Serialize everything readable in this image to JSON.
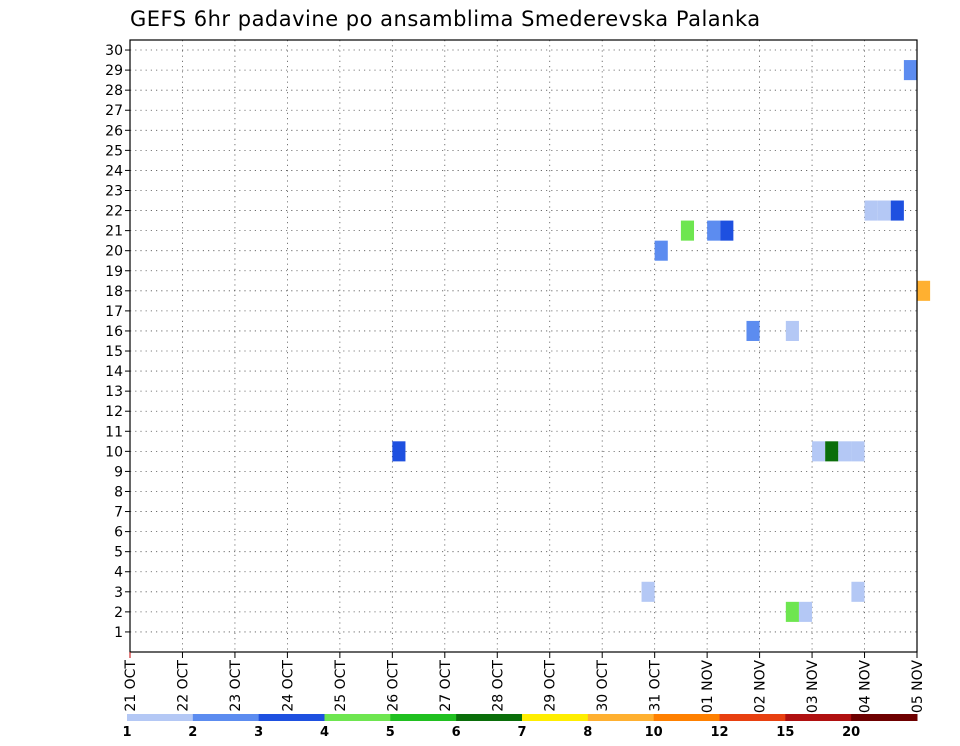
{
  "chart_data": {
    "type": "heatmap",
    "title": "GEFS 6hr padavine po ansamblima Smederevska Palanka",
    "xlabel": "",
    "ylabel": "",
    "x_ticks": [
      "21 OCT",
      "22 OCT",
      "23 OCT",
      "24 OCT",
      "25 OCT",
      "26 OCT",
      "27 OCT",
      "28 OCT",
      "29 OCT",
      "30 OCT",
      "31 OCT",
      "01 NOV",
      "02 NOV",
      "03 NOV",
      "04 NOV",
      "05 NOV"
    ],
    "y_ticks": [
      1,
      2,
      3,
      4,
      5,
      6,
      7,
      8,
      9,
      10,
      11,
      12,
      13,
      14,
      15,
      16,
      17,
      18,
      19,
      20,
      21,
      22,
      23,
      24,
      25,
      26,
      27,
      28,
      29,
      30
    ],
    "xlim": [
      "21 OCT",
      "05 NOV"
    ],
    "ylim": [
      0,
      30
    ],
    "grid": true,
    "legend": {
      "placement": "bottom",
      "labels": [
        "1",
        "2",
        "3",
        "4",
        "5",
        "6",
        "7",
        "8",
        "10",
        "12",
        "15",
        "20"
      ],
      "colors": [
        "#b4c8f5",
        "#5c8cf0",
        "#1e50e0",
        "#6ee650",
        "#20c020",
        "#0a6e0a",
        "#ffee00",
        "#ffb030",
        "#ff8000",
        "#e84010",
        "#b01010",
        "#6e0000"
      ]
    },
    "cells": [
      {
        "member": 29,
        "date": "04 NOV 18Z",
        "value": 2
      },
      {
        "member": 22,
        "date": "04 NOV 00Z",
        "value": 1
      },
      {
        "member": 22,
        "date": "04 NOV 06Z",
        "value": 1
      },
      {
        "member": 22,
        "date": "04 NOV 12Z",
        "value": 3
      },
      {
        "member": 21,
        "date": "31 OCT 12Z",
        "value": 4
      },
      {
        "member": 21,
        "date": "01 NOV 00Z",
        "value": 2
      },
      {
        "member": 21,
        "date": "01 NOV 06Z",
        "value": 3
      },
      {
        "member": 20,
        "date": "31 OCT 00Z",
        "value": 2
      },
      {
        "member": 18,
        "date": "05 NOV 00Z",
        "value": 8
      },
      {
        "member": 16,
        "date": "01 NOV 18Z",
        "value": 2
      },
      {
        "member": 16,
        "date": "02 NOV 12Z",
        "value": 1
      },
      {
        "member": 10,
        "date": "26 OCT 00Z",
        "value": 3
      },
      {
        "member": 10,
        "date": "03 NOV 00Z",
        "value": 1
      },
      {
        "member": 10,
        "date": "03 NOV 06Z",
        "value": 6
      },
      {
        "member": 10,
        "date": "03 NOV 12Z",
        "value": 1
      },
      {
        "member": 10,
        "date": "03 NOV 18Z",
        "value": 1
      },
      {
        "member": 3,
        "date": "30 OCT 18Z",
        "value": 1
      },
      {
        "member": 3,
        "date": "03 NOV 18Z",
        "value": 1
      },
      {
        "member": 2,
        "date": "02 NOV 12Z",
        "value": 4
      },
      {
        "member": 2,
        "date": "02 NOV 18Z",
        "value": 1
      }
    ]
  }
}
